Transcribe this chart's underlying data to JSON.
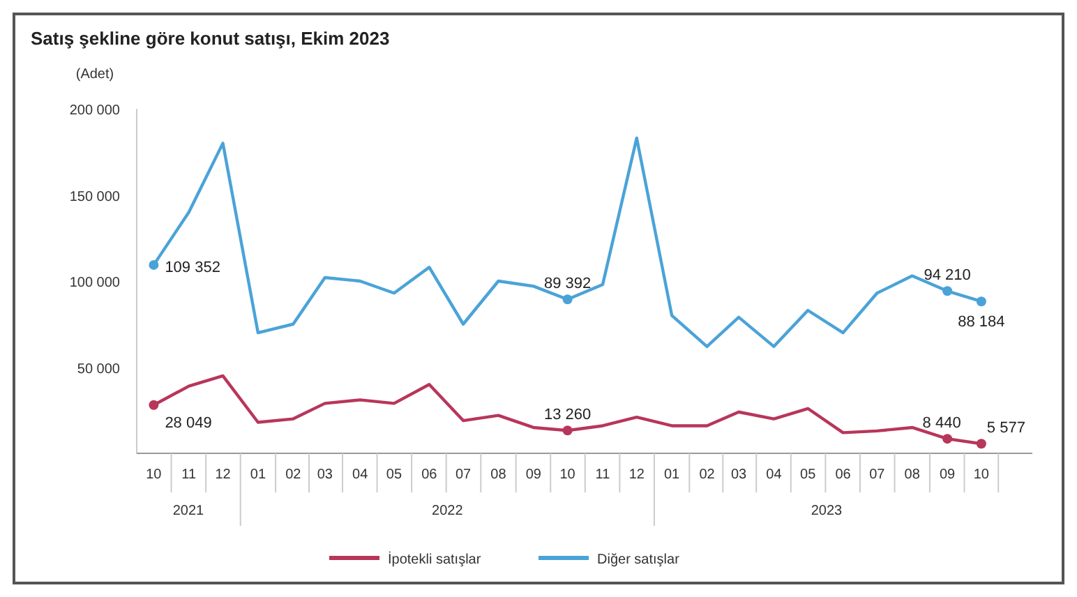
{
  "chart_data": {
    "type": "line",
    "title": "Satış şekline göre konut satışı, Ekim 2023",
    "ylabel": "(Adet)",
    "x": [
      "2021-10",
      "2021-11",
      "2021-12",
      "2022-01",
      "2022-02",
      "2022-03",
      "2022-04",
      "2022-05",
      "2022-06",
      "2022-07",
      "2022-08",
      "2022-09",
      "2022-10",
      "2022-11",
      "2022-12",
      "2023-01",
      "2023-02",
      "2023-03",
      "2023-04",
      "2023-05",
      "2023-06",
      "2023-07",
      "2023-08",
      "2023-09",
      "2023-10"
    ],
    "xlim": [
      "2021-09-16",
      "2023-11-15"
    ],
    "xticks": [
      {
        "value": "2021-10",
        "label": "10"
      },
      {
        "value": "2021-11",
        "label": "11"
      },
      {
        "value": "2021-12",
        "label": "12"
      },
      {
        "value": "2022-01",
        "label": "01"
      },
      {
        "value": "2022-02",
        "label": "02"
      },
      {
        "value": "2022-03",
        "label": "03"
      },
      {
        "value": "2022-04",
        "label": "04"
      },
      {
        "value": "2022-05",
        "label": "05"
      },
      {
        "value": "2022-06",
        "label": "06"
      },
      {
        "value": "2022-07",
        "label": "07"
      },
      {
        "value": "2022-08",
        "label": "08"
      },
      {
        "value": "2022-09",
        "label": "09"
      },
      {
        "value": "2022-10",
        "label": "10"
      },
      {
        "value": "2022-11",
        "label": "11"
      },
      {
        "value": "2022-12",
        "label": "12"
      },
      {
        "value": "2023-01",
        "label": "01"
      },
      {
        "value": "2023-02",
        "label": "02"
      },
      {
        "value": "2023-03",
        "label": "03"
      },
      {
        "value": "2023-04",
        "label": "04"
      },
      {
        "value": "2023-05",
        "label": "05"
      },
      {
        "value": "2023-06",
        "label": "06"
      },
      {
        "value": "2023-07",
        "label": "07"
      },
      {
        "value": "2023-08",
        "label": "08"
      },
      {
        "value": "2023-09",
        "label": "09"
      },
      {
        "value": "2023-10",
        "label": "10"
      }
    ],
    "ylim": [
      0,
      200000
    ],
    "yticks": [
      {
        "value": 50000,
        "label": "50 000"
      },
      {
        "value": 100000,
        "label": "100 000"
      },
      {
        "value": 150000,
        "label": "150 000"
      },
      {
        "value": 200000,
        "label": "200 000"
      }
    ],
    "annotations": [
      "2021",
      "2022",
      "2023"
    ],
    "series": [
      {
        "name": "İpotekli satışlar",
        "color": "#b8365a",
        "values": [
          28049,
          39000,
          45000,
          18000,
          20000,
          29000,
          31000,
          29000,
          40000,
          19000,
          22000,
          15000,
          13260,
          16000,
          21000,
          16000,
          16000,
          24000,
          20000,
          26000,
          12000,
          13000,
          15000,
          8440,
          5577
        ],
        "value_labels": [
          "28 049",
          null,
          null,
          null,
          null,
          null,
          null,
          null,
          null,
          null,
          null,
          null,
          "13 260",
          null,
          null,
          null,
          null,
          null,
          null,
          null,
          null,
          null,
          null,
          "8 440",
          "5 577"
        ]
      },
      {
        "name": "Diğer satışlar",
        "color": "#4aa3d8",
        "values": [
          109352,
          140000,
          180000,
          70000,
          75000,
          102000,
          100000,
          93000,
          108000,
          75000,
          100000,
          97000,
          89392,
          98000,
          183000,
          80000,
          62000,
          79000,
          62000,
          83000,
          70000,
          93000,
          103000,
          94210,
          88184
        ],
        "value_labels": [
          "109 352",
          null,
          null,
          null,
          null,
          null,
          null,
          null,
          null,
          null,
          null,
          null,
          "89 392",
          null,
          null,
          null,
          null,
          null,
          null,
          null,
          null,
          null,
          null,
          "94 210",
          "88 184"
        ]
      }
    ],
    "grid": false,
    "legend": "bottom",
    "line_style": "solid"
  }
}
